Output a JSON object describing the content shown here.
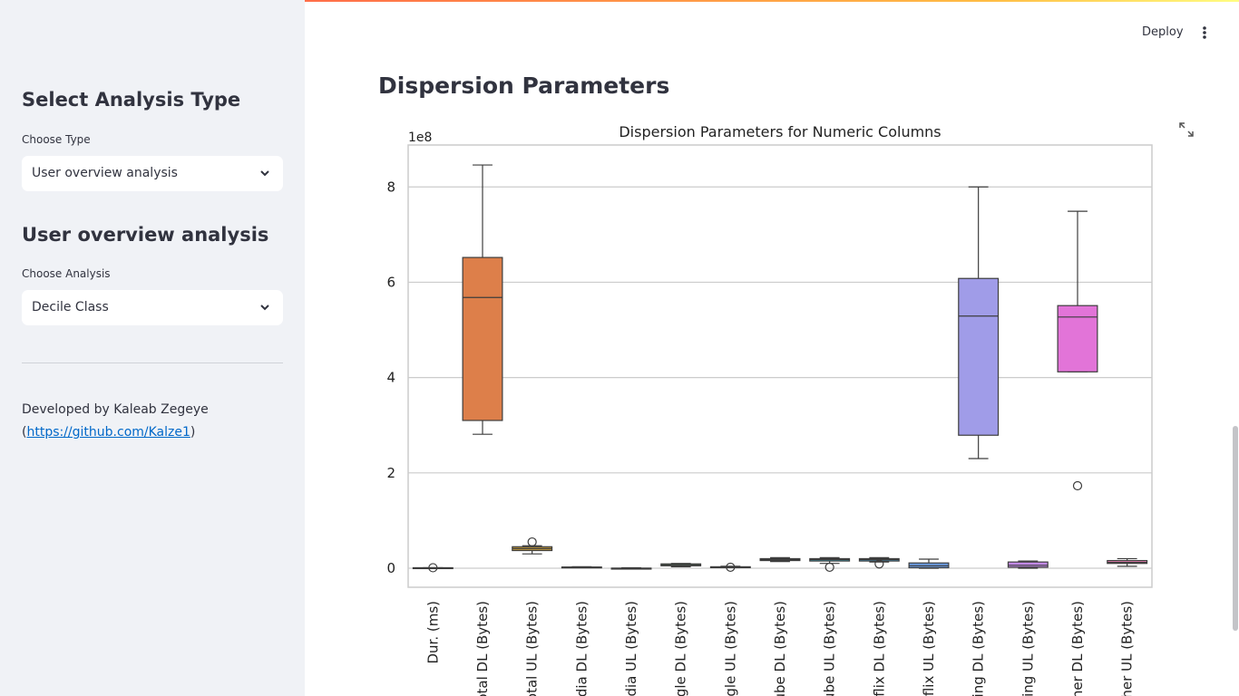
{
  "sidebar": {
    "section1": {
      "title": "Select Analysis Type",
      "label": "Choose Type",
      "selected": "User overview analysis"
    },
    "section2": {
      "title": "User overview analysis",
      "label": "Choose Analysis",
      "selected": "Decile Class"
    },
    "footer": {
      "author": "Developed by Kaleab Zegeye",
      "link_prefix": "(",
      "link": "https://github.com/Kalze1",
      "link_suffix": ")"
    }
  },
  "header": {
    "deploy": "Deploy"
  },
  "main": {
    "heading": "Dispersion Parameters"
  },
  "chart_data": {
    "type": "box",
    "title": "Dispersion Parameters for Numeric Columns",
    "offset_label": "1e8",
    "categories": [
      "Dur. (ms)",
      "otal DL (Bytes)",
      "otal UL (Bytes)",
      "edia DL (Bytes)",
      "edia UL (Bytes)",
      "ogle DL (Bytes)",
      "ogle UL (Bytes)",
      "ube DL (Bytes)",
      "ube UL (Bytes)",
      "tflix DL (Bytes)",
      "tflix UL (Bytes)",
      "ning DL (Bytes)",
      "ning UL (Bytes)",
      "her DL (Bytes)",
      "her UL (Bytes)"
    ],
    "boxes": [
      {
        "color": "#e8829a",
        "low": 0,
        "q1": 0,
        "median": 0,
        "q3": 0.01,
        "high": 0.01,
        "outliers": [
          0.01
        ]
      },
      {
        "color": "#dd7f4a",
        "low": 2.81,
        "q1": 3.1,
        "median": 5.68,
        "q3": 6.52,
        "high": 8.46
      },
      {
        "color": "#c49a3b",
        "low": 0.3,
        "q1": 0.37,
        "median": 0.41,
        "q3": 0.45,
        "high": 0.47,
        "outliers": [
          0.55
        ]
      },
      {
        "color": "#a3a63c",
        "low": 0.01,
        "q1": 0.015,
        "median": 0.02,
        "q3": 0.025,
        "high": 0.03
      },
      {
        "color": "#7fae48",
        "low": 0,
        "q1": 0,
        "median": 0,
        "q3": 0,
        "high": 0.01
      },
      {
        "color": "#4db36c",
        "low": 0.03,
        "q1": 0.05,
        "median": 0.07,
        "q3": 0.09,
        "high": 0.1
      },
      {
        "color": "#42b096",
        "low": 0.01,
        "q1": 0.015,
        "median": 0.02,
        "q3": 0.03,
        "high": 0.04,
        "outliers": [
          0.02
        ]
      },
      {
        "color": "#3dadae",
        "low": 0.14,
        "q1": 0.16,
        "median": 0.18,
        "q3": 0.2,
        "high": 0.22
      },
      {
        "color": "#3eaac2",
        "low": 0.1,
        "q1": 0.15,
        "median": 0.18,
        "q3": 0.2,
        "high": 0.22,
        "outliers": [
          0.02
        ]
      },
      {
        "color": "#45a4d4",
        "low": 0.13,
        "q1": 0.15,
        "median": 0.18,
        "q3": 0.2,
        "high": 0.22,
        "outliers": [
          0.09
        ]
      },
      {
        "color": "#6c9de4",
        "low": 0,
        "q1": 0.01,
        "median": 0.05,
        "q3": 0.11,
        "high": 0.19
      },
      {
        "color": "#a09ce8",
        "low": 2.3,
        "q1": 2.79,
        "median": 5.29,
        "q3": 6.08,
        "high": 8.0
      },
      {
        "color": "#c48ae8",
        "low": 0,
        "q1": 0.02,
        "median": 0.06,
        "q3": 0.13,
        "high": 0.15
      },
      {
        "color": "#e274d8",
        "low": 4.12,
        "q1": 4.12,
        "median": 5.27,
        "q3": 5.51,
        "high": 7.49,
        "outliers": [
          1.73
        ]
      },
      {
        "color": "#e77bb0",
        "low": 0.04,
        "q1": 0.1,
        "median": 0.12,
        "q3": 0.16,
        "high": 0.2
      }
    ],
    "ylim": [
      -0.4,
      8.88
    ],
    "yticks": [
      0,
      2,
      4,
      6,
      8
    ],
    "grid": true
  }
}
